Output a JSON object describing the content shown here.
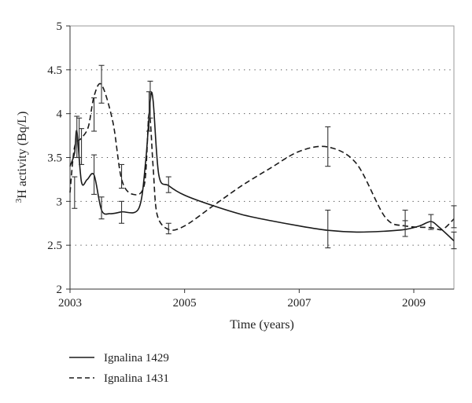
{
  "chart_data": {
    "type": "line",
    "xlabel": "Time (years)",
    "ylabel_sup": "3",
    "ylabel": "H activity (Bq/L)",
    "xlim": [
      2003,
      2009.7
    ],
    "ylim": [
      2,
      5
    ],
    "xticks": [
      "2003",
      "2005",
      "2007",
      "2009"
    ],
    "yticks": [
      "2",
      "2.5",
      "3",
      "3.5",
      "4",
      "4.5",
      "5"
    ],
    "grid": "horizontal-dotted",
    "legend_position": "bottom-left",
    "series": [
      {
        "name": "Ignalina 1429",
        "style": "solid",
        "color": "#1a1a1a",
        "x": [
          2003.0,
          2003.08,
          2003.12,
          2003.2,
          2003.3,
          2003.42,
          2003.55,
          2003.7,
          2003.9,
          2004.2,
          2004.32,
          2004.4,
          2004.45,
          2004.55,
          2004.72,
          2005.0,
          2005.5,
          2006.0,
          2006.5,
          2007.0,
          2007.5,
          2008.0,
          2008.5,
          2008.85,
          2009.1,
          2009.3,
          2009.45,
          2009.7
        ],
        "y": [
          3.4,
          3.55,
          3.8,
          3.22,
          3.25,
          3.3,
          2.9,
          2.86,
          2.88,
          2.92,
          3.45,
          4.15,
          4.15,
          3.3,
          3.18,
          3.07,
          2.95,
          2.85,
          2.78,
          2.72,
          2.67,
          2.65,
          2.66,
          2.68,
          2.72,
          2.77,
          2.7,
          2.55
        ],
        "errorbars": [
          {
            "x": 2003.12,
            "y": 3.75,
            "low": 3.5,
            "high": 3.97
          },
          {
            "x": 2003.2,
            "y": 3.6,
            "low": 3.42,
            "high": 3.83
          },
          {
            "x": 2003.42,
            "y": 3.3,
            "low": 3.08,
            "high": 3.53
          },
          {
            "x": 2003.55,
            "y": 2.92,
            "low": 2.8,
            "high": 3.05
          },
          {
            "x": 2003.9,
            "y": 2.88,
            "low": 2.75,
            "high": 3.0
          },
          {
            "x": 2004.4,
            "y": 4.15,
            "low": 3.95,
            "high": 4.37
          },
          {
            "x": 2004.72,
            "y": 3.18,
            "low": 3.1,
            "high": 3.28
          },
          {
            "x": 2007.5,
            "y": 2.67,
            "low": 2.47,
            "high": 2.9
          },
          {
            "x": 2008.85,
            "y": 2.68,
            "low": 2.6,
            "high": 2.78
          },
          {
            "x": 2009.7,
            "y": 2.55,
            "low": 2.46,
            "high": 2.65
          }
        ]
      },
      {
        "name": "Ignalina 1431",
        "style": "dashed",
        "color": "#1a1a1a",
        "x": [
          2003.0,
          2003.08,
          2003.2,
          2003.32,
          2003.42,
          2003.55,
          2003.75,
          2003.9,
          2004.1,
          2004.3,
          2004.38,
          2004.45,
          2004.52,
          2004.72,
          2005.0,
          2005.5,
          2006.0,
          2006.5,
          2007.0,
          2007.5,
          2008.0,
          2008.5,
          2008.85,
          2009.3,
          2009.5,
          2009.7
        ],
        "y": [
          3.1,
          3.62,
          3.72,
          3.85,
          4.2,
          4.33,
          3.9,
          3.25,
          3.08,
          3.2,
          4.0,
          3.4,
          2.85,
          2.68,
          2.72,
          2.95,
          3.18,
          3.38,
          3.57,
          3.62,
          3.43,
          2.82,
          2.72,
          2.7,
          2.68,
          2.8
        ],
        "errorbars": [
          {
            "x": 2003.08,
            "y": 3.1,
            "low": 2.92,
            "high": 3.28
          },
          {
            "x": 2003.16,
            "y": 3.73,
            "low": 3.5,
            "high": 3.95
          },
          {
            "x": 2003.42,
            "y": 3.97,
            "low": 3.8,
            "high": 4.18
          },
          {
            "x": 2003.55,
            "y": 4.33,
            "low": 4.12,
            "high": 4.55
          },
          {
            "x": 2003.9,
            "y": 3.28,
            "low": 3.15,
            "high": 3.42
          },
          {
            "x": 2004.38,
            "y": 4.0,
            "low": 3.8,
            "high": 4.25
          },
          {
            "x": 2004.72,
            "y": 2.68,
            "low": 2.63,
            "high": 2.75
          },
          {
            "x": 2007.5,
            "y": 3.62,
            "low": 3.4,
            "high": 3.85
          },
          {
            "x": 2008.85,
            "y": 2.8,
            "low": 2.72,
            "high": 2.9
          },
          {
            "x": 2009.3,
            "y": 2.75,
            "low": 2.68,
            "high": 2.85
          },
          {
            "x": 2009.7,
            "y": 2.82,
            "low": 2.7,
            "high": 2.95
          }
        ]
      }
    ]
  }
}
